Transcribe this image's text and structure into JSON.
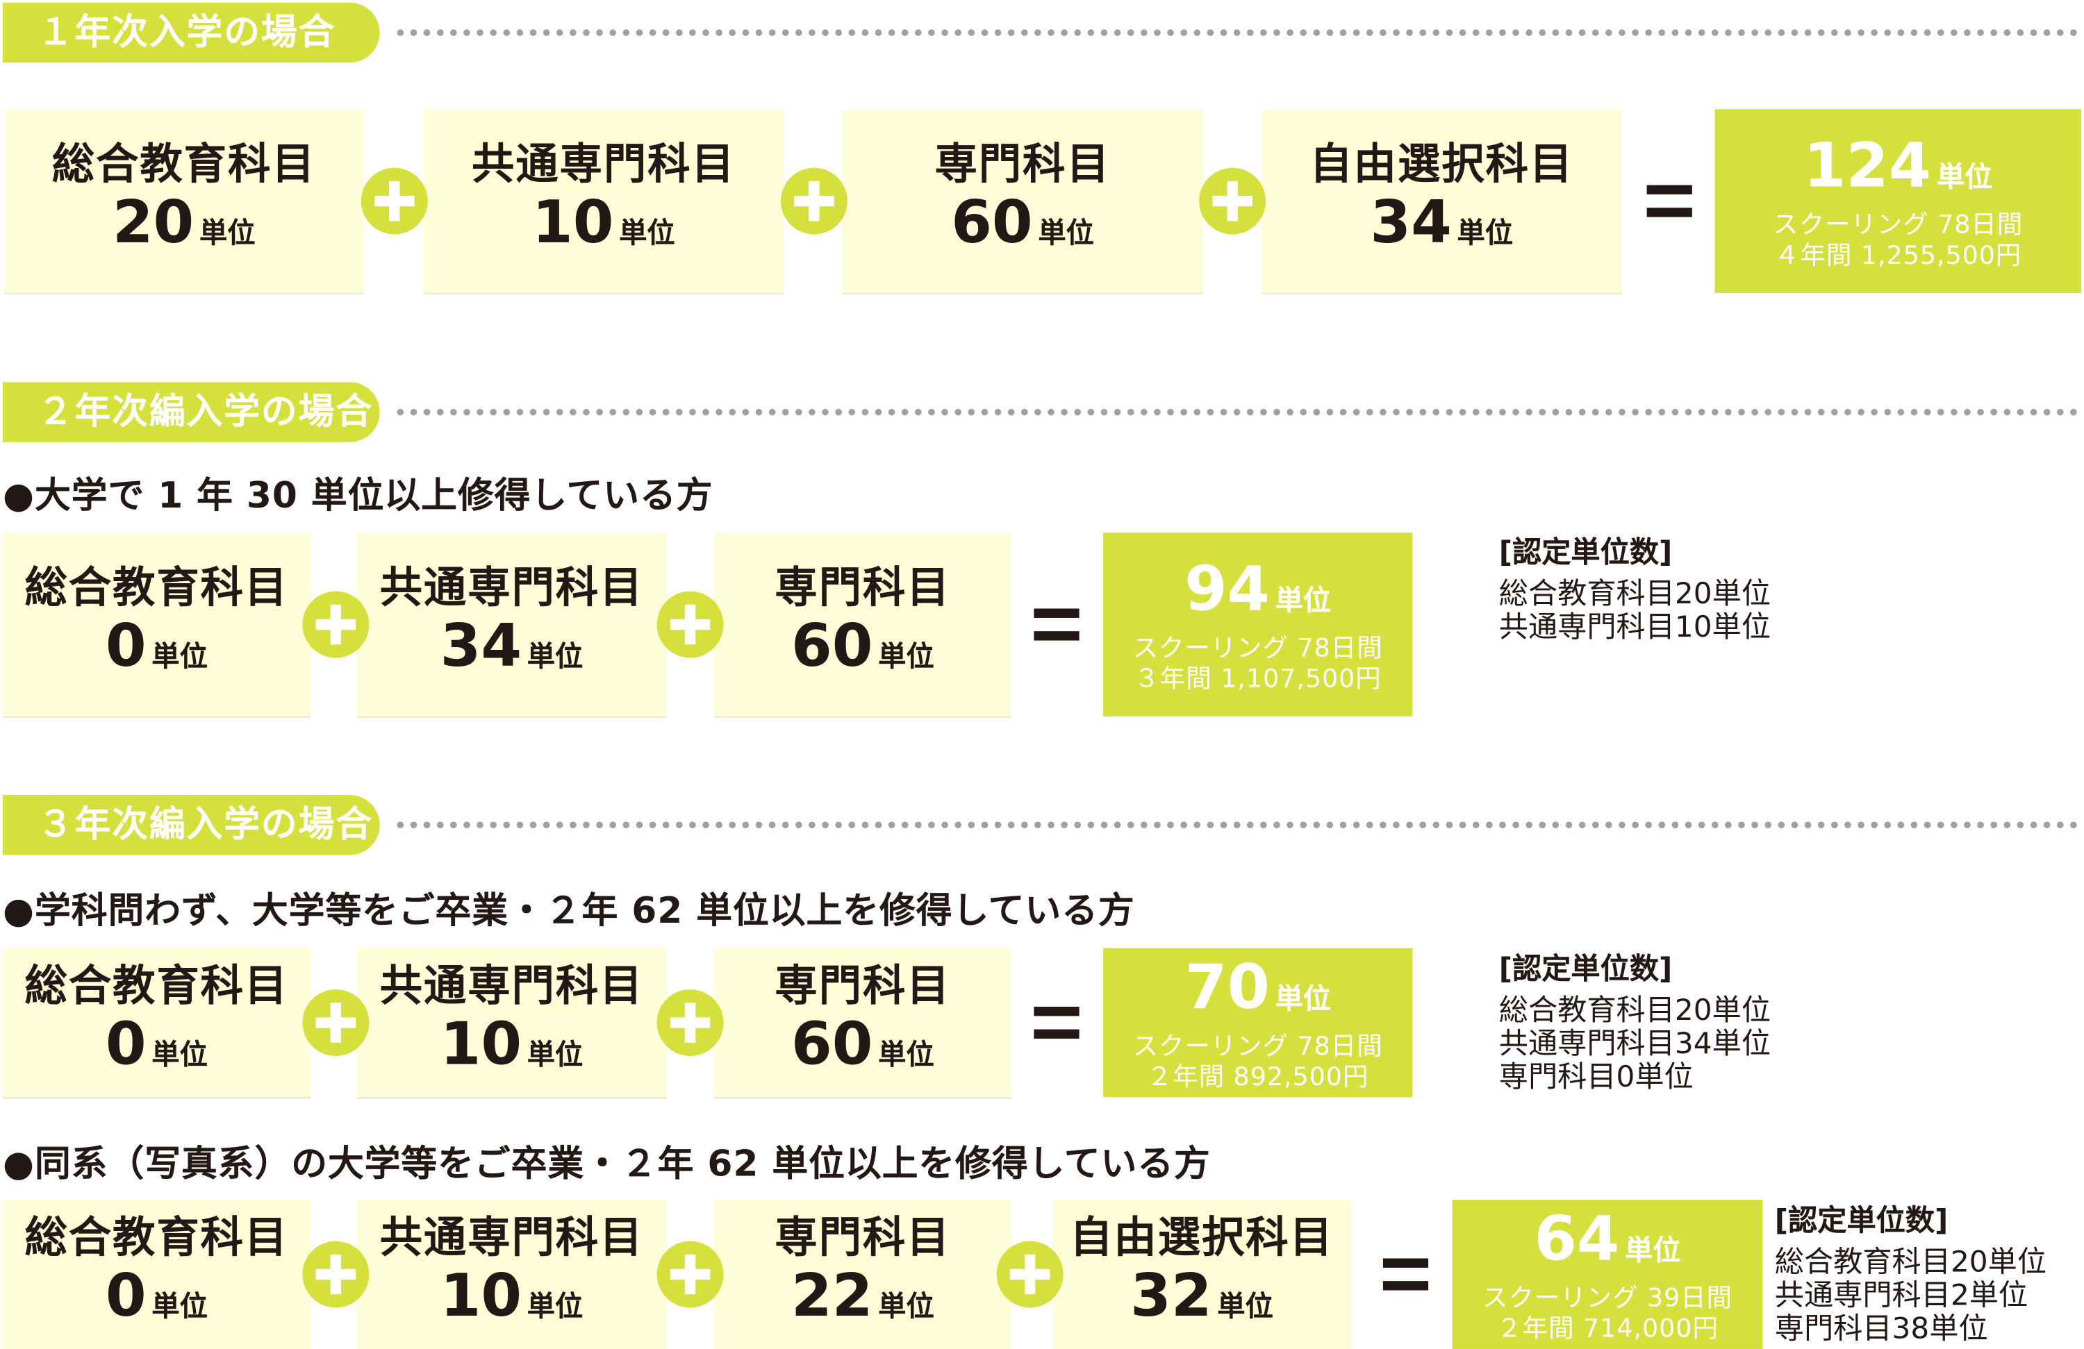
{
  "colors": {
    "accent": "#d5e03c",
    "box_bg": "#fdfdd8",
    "text": "#231815"
  },
  "unit_label": "単位",
  "sections": [
    {
      "title": "１年次入学の場合",
      "cases": [
        {
          "subtitle": "",
          "items": [
            {
              "name": "総合教育科目",
              "units": "20"
            },
            {
              "name": "共通専門科目",
              "units": "10"
            },
            {
              "name": "専門科目",
              "units": "60"
            },
            {
              "name": "自由選択科目",
              "units": "34"
            }
          ],
          "total": {
            "units": "124",
            "schooling": "スクーリング  78日間",
            "fee": "４年間  1,255,500円"
          },
          "note": null
        }
      ]
    },
    {
      "title": "２年次編入学の場合",
      "cases": [
        {
          "subtitle": "●大学で 1 年 30 単位以上修得している方",
          "items": [
            {
              "name": "総合教育科目",
              "units": "0"
            },
            {
              "name": "共通専門科目",
              "units": "34"
            },
            {
              "name": "専門科目",
              "units": "60"
            }
          ],
          "total": {
            "units": "94",
            "schooling": "スクーリング  78日間",
            "fee": "３年間  1,107,500円"
          },
          "note": {
            "heading": "[認定単位数]",
            "lines": [
              "総合教育科目20単位",
              "共通専門科目10単位"
            ]
          }
        }
      ]
    },
    {
      "title": "３年次編入学の場合",
      "cases": [
        {
          "subtitle": "●学科問わず、大学等をご卒業・２年 62 単位以上を修得している方",
          "items": [
            {
              "name": "総合教育科目",
              "units": "0"
            },
            {
              "name": "共通専門科目",
              "units": "10"
            },
            {
              "name": "専門科目",
              "units": "60"
            }
          ],
          "total": {
            "units": "70",
            "schooling": "スクーリング  78日間",
            "fee": "２年間  892,500円"
          },
          "note": {
            "heading": "[認定単位数]",
            "lines": [
              "総合教育科目20単位",
              "共通専門科目34単位",
              "専門科目0単位"
            ]
          }
        },
        {
          "subtitle": "●同系（写真系）の大学等をご卒業・２年 62 単位以上を修得している方",
          "items": [
            {
              "name": "総合教育科目",
              "units": "0"
            },
            {
              "name": "共通専門科目",
              "units": "10"
            },
            {
              "name": "専門科目",
              "units": "22"
            },
            {
              "name": "自由選択科目",
              "units": "32"
            }
          ],
          "total": {
            "units": "64",
            "schooling": "スクーリング  39日間",
            "fee": "２年間  714,000円"
          },
          "note": {
            "heading": "[認定単位数]",
            "lines": [
              "総合教育科目20単位",
              "共通専門科目2単位",
              "専門科目38単位"
            ]
          }
        }
      ]
    }
  ]
}
